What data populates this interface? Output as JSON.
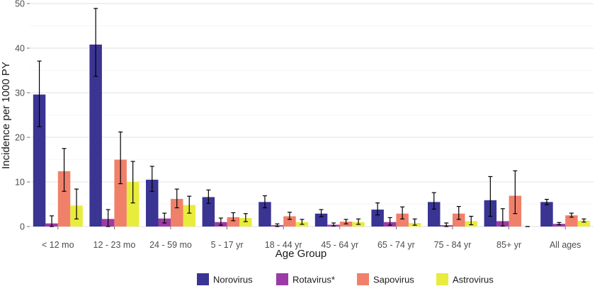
{
  "chart_data": {
    "type": "bar",
    "xlabel": "Age Group",
    "ylabel": "Incidence per 1000 PY",
    "ylim": [
      0,
      50
    ],
    "yticks": [
      0,
      10,
      20,
      30,
      40,
      50
    ],
    "grid": true,
    "legend_position": "bottom",
    "categories": [
      "< 12 mo",
      "12 - 23 mo",
      "24 - 59 mo",
      "5 - 17 yr",
      "18 - 44 yr",
      "45 - 64 yr",
      "65 - 74 yr",
      "75 - 84 yr",
      "85+ yr",
      "All ages"
    ],
    "series": [
      {
        "name": "Norovirus",
        "color": "#3a3493",
        "values": [
          29.6,
          40.8,
          10.5,
          6.6,
          5.5,
          2.9,
          3.8,
          5.5,
          5.9,
          5.5
        ],
        "error_low": [
          22.4,
          33.7,
          7.9,
          5.2,
          4.2,
          2.2,
          2.6,
          3.9,
          2.3,
          4.9
        ],
        "error_high": [
          37.1,
          48.9,
          13.5,
          8.2,
          6.9,
          3.8,
          5.3,
          7.6,
          11.2,
          6.1
        ]
      },
      {
        "name": "Rotavirus*",
        "color": "#9c3aa8",
        "values": [
          0.7,
          1.7,
          1.8,
          1.0,
          0.3,
          0.4,
          1.0,
          0.3,
          1.2,
          0.6
        ],
        "error_low": [
          0.0,
          0.0,
          0.8,
          0.3,
          0.0,
          0.1,
          0.3,
          0.0,
          0.1,
          0.4
        ],
        "error_high": [
          2.4,
          3.8,
          3.0,
          1.9,
          0.6,
          0.8,
          2.0,
          0.8,
          4.0,
          0.9
        ]
      },
      {
        "name": "Sapovirus",
        "color": "#f0806a",
        "values": [
          12.4,
          15.0,
          6.2,
          2.1,
          2.3,
          1.1,
          2.9,
          2.9,
          6.9,
          2.5
        ],
        "error_low": [
          7.9,
          9.6,
          4.2,
          1.3,
          1.6,
          0.6,
          1.7,
          1.6,
          2.9,
          2.1
        ],
        "error_high": [
          17.5,
          21.2,
          8.4,
          3.1,
          3.2,
          1.6,
          4.4,
          4.5,
          12.5,
          3.0
        ]
      },
      {
        "name": "Astrovirus",
        "color": "#e8ec3c",
        "values": [
          4.7,
          10.0,
          4.8,
          1.9,
          1.0,
          1.0,
          0.8,
          1.2,
          0.0,
          1.3
        ],
        "error_low": [
          1.7,
          5.3,
          3.0,
          1.1,
          0.5,
          0.5,
          0.3,
          0.4,
          0.0,
          1.0
        ],
        "error_high": [
          8.4,
          14.6,
          6.8,
          2.9,
          1.6,
          1.7,
          1.7,
          2.3,
          0.0,
          1.7
        ]
      }
    ]
  }
}
